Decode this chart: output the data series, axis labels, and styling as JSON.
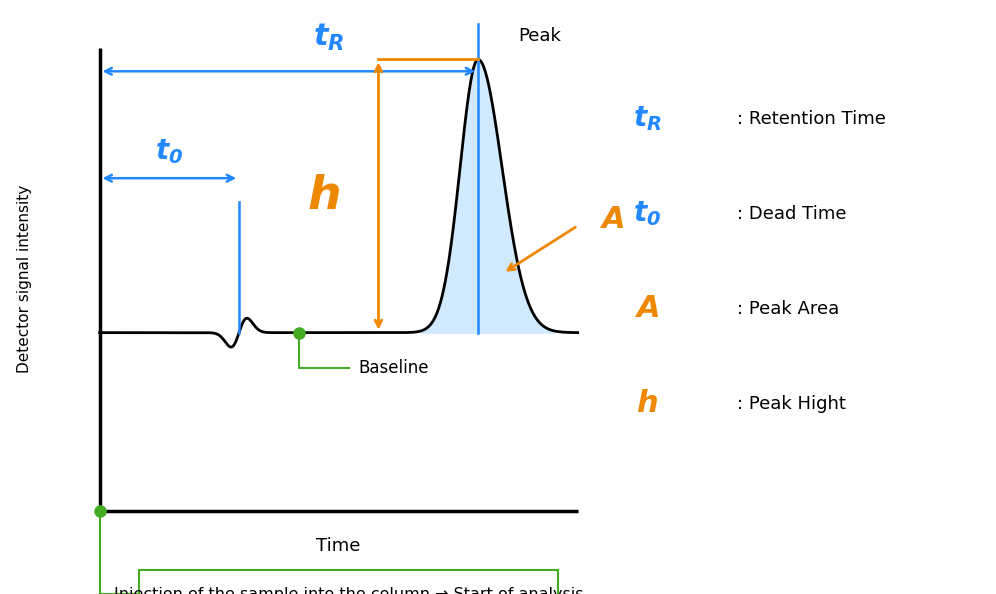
{
  "bg_color": "#ffffff",
  "blue_color": "#2288ff",
  "orange_color": "#ee8800",
  "green_color": "#44aa22",
  "black_color": "#000000",
  "light_blue_fill": "#cce8ff",
  "ylabel": "Detector signal intensity",
  "xlabel": "Time",
  "annotation_box_text": "Injection of the sample into the column → Start of analysis",
  "legend_items": [
    {
      "sym": "t_R",
      "color": "#2288ff",
      "desc": ": Retention Time"
    },
    {
      "sym": "t_0",
      "color": "#2288ff",
      "desc": ": Dead Time"
    },
    {
      "sym": "A",
      "color": "#ee8800",
      "desc": ": Peak Area"
    },
    {
      "sym": "h",
      "color": "#ee8800",
      "desc": ": Peak Hight"
    }
  ]
}
